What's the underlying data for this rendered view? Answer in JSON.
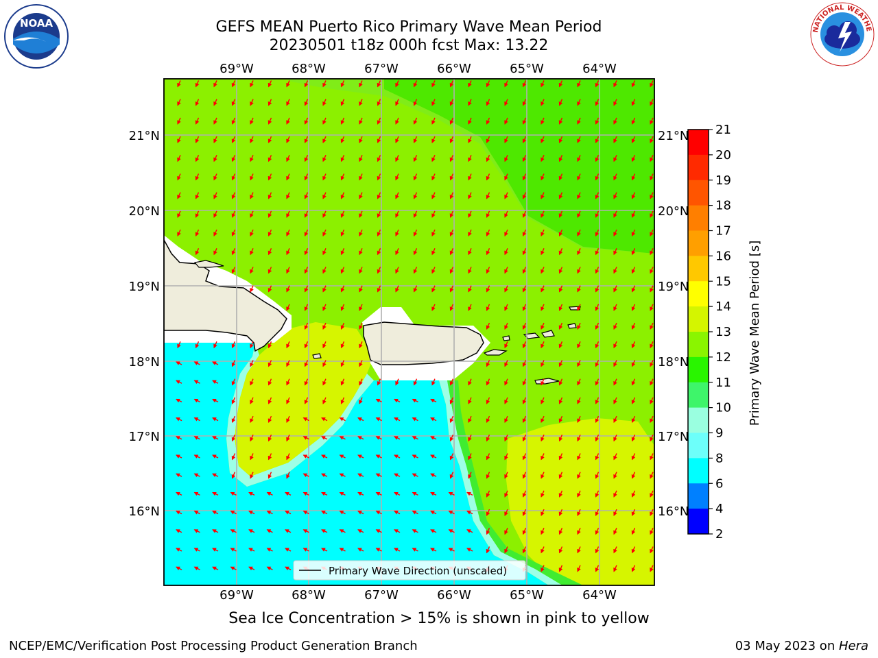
{
  "title": {
    "line1": "GEFS MEAN Puerto Rico Primary Wave Mean Period",
    "line2": "20230501 t18z 000h fcst   Max: 13.22"
  },
  "map": {
    "lon_labels": [
      "69°W",
      "68°W",
      "67°W",
      "66°W",
      "65°W",
      "64°W"
    ],
    "lat_labels": [
      "21°N",
      "20°N",
      "19°N",
      "18°N",
      "17°N",
      "16°N"
    ],
    "legend_label": "Primary Wave Direction (unscaled)",
    "field": "Primary Wave Mean Period",
    "max_value": 13.22,
    "arrow_color": "#ff0000",
    "land_color": "#efeddc",
    "coastline_color": "#000000"
  },
  "colorbar": {
    "label": "Primary Wave Mean Period [s]",
    "ticks": [
      "21",
      "20",
      "19",
      "18",
      "17",
      "16",
      "15",
      "14",
      "13",
      "12",
      "11",
      "10",
      "9",
      "8",
      "6",
      "4",
      "2"
    ],
    "colors": [
      "#ff0000",
      "#ff2a00",
      "#ff5500",
      "#ff7f00",
      "#ff9f00",
      "#ffc800",
      "#ffff00",
      "#d4f500",
      "#8af500",
      "#29f500",
      "#3ef56a",
      "#9affe0",
      "#6dfffa",
      "#00ffff",
      "#0080ff",
      "#0000ff"
    ]
  },
  "note": "Sea Ice Concentration > 15% is shown in pink to yellow",
  "footer": {
    "left": "NCEP/EMC/Verification Post Processing Product Generation Branch",
    "right_prefix": "03 May 2023 on ",
    "right_host": "Hera"
  },
  "logos": {
    "noaa_text": "NOAA",
    "nws_text": "NATIONAL WEATHER SERVICE"
  }
}
